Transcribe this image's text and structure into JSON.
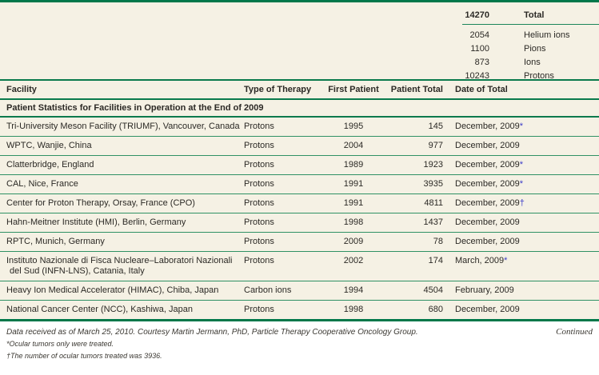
{
  "colors": {
    "accent_green": "#00784a",
    "thin_rule_green": "#2f9164",
    "background_cream": "#f5f1e4",
    "text": "#2b2925",
    "footnote_marker_blue": "#3c3cc8"
  },
  "summary": {
    "total_value": "14270",
    "total_label": "Total",
    "rows": [
      {
        "value": "2054",
        "label": "Helium ions"
      },
      {
        "value": "1100",
        "label": "Pions"
      },
      {
        "value": "873",
        "label": "Ions"
      },
      {
        "value": "10243",
        "label": "Protons"
      }
    ]
  },
  "main_table": {
    "columns": [
      "Facility",
      "Type of Therapy",
      "First Patient",
      "Patient Total",
      "Date of Total"
    ],
    "section_title": "Patient Statistics for Facilities in Operation at the End of 2009",
    "rows": [
      {
        "facility": "Tri-University Meson Facility (TRIUMF), Vancouver, Canada",
        "therapy": "Protons",
        "first_patient": "1995",
        "patient_total": "145",
        "date": "December, 2009",
        "marker": "*"
      },
      {
        "facility": "WPTC, Wanjie, China",
        "therapy": "Protons",
        "first_patient": "2004",
        "patient_total": "977",
        "date": "December, 2009",
        "marker": ""
      },
      {
        "facility": "Clatterbridge, England",
        "therapy": "Protons",
        "first_patient": "1989",
        "patient_total": "1923",
        "date": "December, 2009",
        "marker": "*"
      },
      {
        "facility": "CAL, Nice, France",
        "therapy": "Protons",
        "first_patient": "1991",
        "patient_total": "3935",
        "date": "December, 2009",
        "marker": "*"
      },
      {
        "facility": "Center for Proton Therapy, Orsay, France (CPO)",
        "therapy": "Protons",
        "first_patient": "1991",
        "patient_total": "4811",
        "date": "December, 2009",
        "marker": "†"
      },
      {
        "facility": "Hahn-Meitner Institute (HMI), Berlin, Germany",
        "therapy": "Protons",
        "first_patient": "1998",
        "patient_total": "1437",
        "date": "December, 2009",
        "marker": ""
      },
      {
        "facility": "RPTC, Munich, Germany",
        "therapy": "Protons",
        "first_patient": "2009",
        "patient_total": "78",
        "date": "December, 2009",
        "marker": ""
      },
      {
        "facility": "Instituto Nazionale di Fisca Nucleare–Laboratori Nazionali del Sud (INFN-LNS), Catania, Italy",
        "therapy": "Protons",
        "first_patient": "2002",
        "patient_total": "174",
        "date": "March, 2009",
        "marker": "*"
      },
      {
        "facility": "Heavy Ion Medical Accelerator (HIMAC), Chiba, Japan",
        "therapy": "Carbon ions",
        "first_patient": "1994",
        "patient_total": "4504",
        "date": "February, 2009",
        "marker": ""
      },
      {
        "facility": "National Cancer Center (NCC), Kashiwa, Japan",
        "therapy": "Protons",
        "first_patient": "1998",
        "patient_total": "680",
        "date": "December, 2009",
        "marker": ""
      }
    ]
  },
  "footer": {
    "credit": "Data received as of March 25, 2010. Courtesy Martin Jermann, PhD, Particle Therapy Cooperative Oncology Group.",
    "continued": "Continued",
    "footnotes": [
      "*Ocular tumors only were treated.",
      "†The number of ocular tumors treated was 3936."
    ]
  }
}
